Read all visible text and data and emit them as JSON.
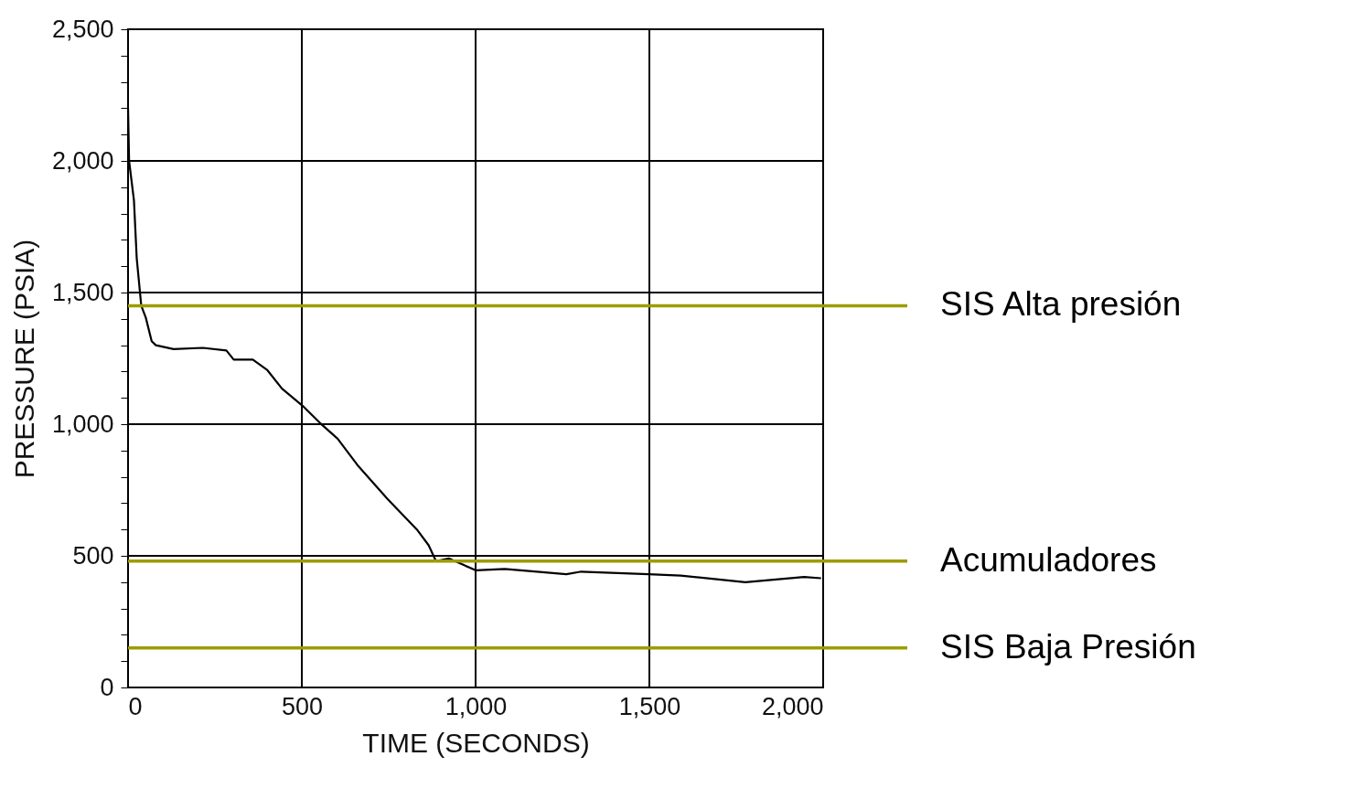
{
  "chart_data": {
    "type": "line",
    "xlabel": "TIME (SECONDS)",
    "ylabel": "PRESSURE (PSIA)",
    "xlim": [
      0,
      2000
    ],
    "ylim": [
      0,
      2500
    ],
    "xticks": [
      0,
      500,
      {
        "value": 1000,
        "label": "1,000"
      },
      {
        "value": 1500,
        "label": "1,500"
      },
      {
        "value": 2000,
        "label": "2,000"
      }
    ],
    "yticks": [
      0,
      {
        "value": 100,
        "label": null
      },
      {
        "value": 200,
        "label": null
      },
      {
        "value": 300,
        "label": null
      },
      {
        "value": 400,
        "label": null
      },
      500,
      {
        "value": 600,
        "label": null
      },
      {
        "value": 700,
        "label": null
      },
      {
        "value": 800,
        "label": null
      },
      {
        "value": 900,
        "label": null
      },
      {
        "value": 1000,
        "label": "1,000"
      },
      {
        "value": 1100,
        "label": null
      },
      {
        "value": 1200,
        "label": null
      },
      {
        "value": 1300,
        "label": null
      },
      {
        "value": 1400,
        "label": null
      },
      {
        "value": 1500,
        "label": "1,500"
      },
      {
        "value": 1600,
        "label": null
      },
      {
        "value": 1700,
        "label": null
      },
      {
        "value": 1800,
        "label": null
      },
      {
        "value": 1900,
        "label": null
      },
      {
        "value": 2000,
        "label": "2,000"
      },
      {
        "value": 2100,
        "label": null
      },
      {
        "value": 2200,
        "label": null
      },
      {
        "value": 2300,
        "label": null
      },
      {
        "value": 2400,
        "label": null
      },
      {
        "value": 2500,
        "label": "2,500"
      }
    ],
    "grid": true,
    "marker": "none",
    "line_style": "solid",
    "series": [
      {
        "color": "#000000",
        "x": [
          0,
          3,
          17,
          25,
          38,
          51,
          68,
          80,
          131,
          215,
          283,
          304,
          359,
          401,
          443,
          502,
          552,
          603,
          663,
          747,
          831,
          865,
          886,
          924,
          966,
          1000,
          1084,
          1177,
          1261,
          1304,
          1498,
          1590,
          1776,
          1945,
          1994
        ],
        "values": [
          2200,
          2000,
          1850,
          1630,
          1450,
          1405,
          1315,
          1300,
          1285,
          1290,
          1280,
          1245,
          1245,
          1205,
          1135,
          1070,
          1005,
          945,
          840,
          715,
          600,
          540,
          480,
          490,
          465,
          445,
          450,
          440,
          430,
          440,
          430,
          425,
          400,
          420,
          415
        ]
      }
    ],
    "ref_lines": [
      {
        "axis": "y",
        "value": 1450,
        "label": "SIS Alta presión",
        "color": "#9c9c00"
      },
      {
        "axis": "y",
        "value": 480,
        "label": "Acumuladores",
        "color": "#9c9c00"
      },
      {
        "axis": "y",
        "value": 150,
        "label": "SIS Baja Presión",
        "color": "#9c9c00"
      }
    ]
  }
}
